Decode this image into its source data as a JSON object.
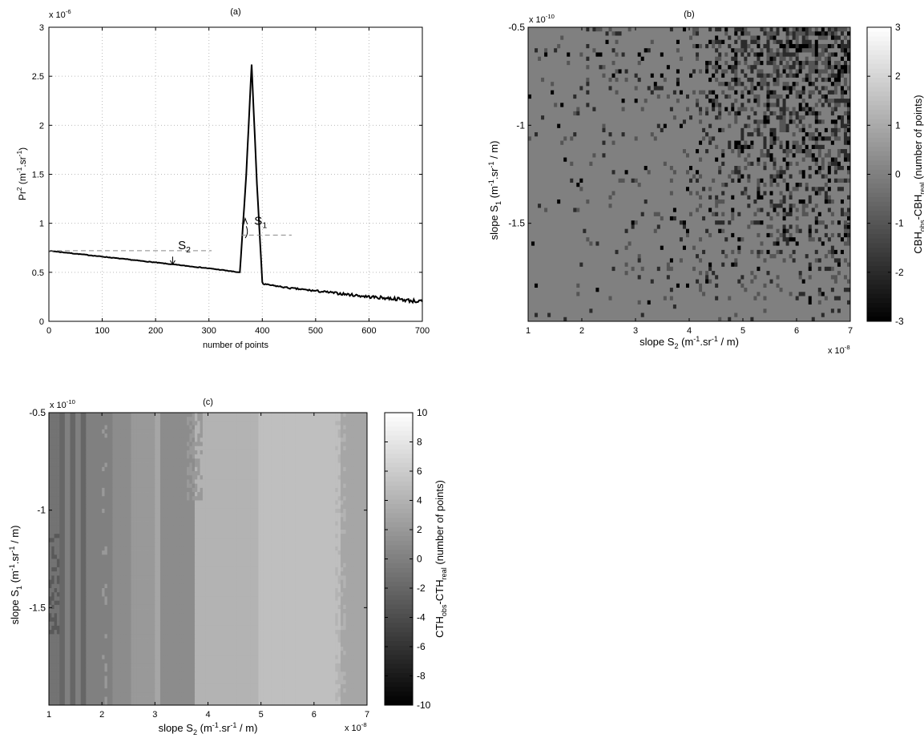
{
  "chart_data": [
    {
      "panel": "(a)",
      "type": "line",
      "title": "(a)",
      "xlabel": "number of points",
      "ylabel_main": "Pr",
      "ylabel_sup": "2",
      "ylabel_unit_1": " (m",
      "ylabel_unit_sup1": "-1",
      "ylabel_unit_2": ".sr",
      "ylabel_unit_sup2": "-1",
      "ylabel_unit_3": ")",
      "y_exponent": "x 10",
      "y_exponent_sup": "-6",
      "xlim": [
        0,
        700
      ],
      "ylim": [
        0,
        3
      ],
      "xticks": [
        "0",
        "100",
        "200",
        "300",
        "400",
        "500",
        "600",
        "700"
      ],
      "yticks": [
        "0",
        "0.5",
        "1",
        "1.5",
        "2",
        "2.5",
        "3"
      ],
      "grid": true,
      "series": [
        {
          "x": [
            0,
            50,
            100,
            150,
            200,
            250,
            300,
            330,
            355,
            358,
            370,
            380,
            390,
            400,
            402,
            450,
            500,
            550,
            600,
            650,
            680,
            700
          ],
          "y": [
            0.72,
            0.69,
            0.66,
            0.63,
            0.6,
            0.57,
            0.54,
            0.52,
            0.5,
            0.5,
            1.5,
            2.62,
            1.4,
            0.4,
            0.38,
            0.34,
            0.31,
            0.28,
            0.25,
            0.23,
            0.21,
            0.2
          ]
        }
      ],
      "annotations": [
        {
          "label": "S",
          "sub": "2"
        },
        {
          "label": "S",
          "sub": "1"
        }
      ]
    },
    {
      "panel": "(b)",
      "type": "heatmap",
      "title": "(b)",
      "xlabel_main": "slope S",
      "xlabel_sub": "2",
      "xlabel_unit_1": " (m",
      "xlabel_unit_sup1": "-1",
      "xlabel_unit_2": ".sr",
      "xlabel_unit_sup2": "-1",
      "xlabel_unit_3": " / m)",
      "ylabel_main": "slope S",
      "ylabel_sub": "1",
      "ylabel_unit_1": " (m",
      "ylabel_unit_sup1": "-1",
      "ylabel_unit_2": ".sr",
      "ylabel_unit_sup2": "-1",
      "ylabel_unit_3": " / m)",
      "x_exponent": "x 10",
      "x_exponent_sup": "-8",
      "y_exponent": "x 10",
      "y_exponent_sup": "-10",
      "xlim": [
        1,
        7
      ],
      "ylim": [
        -2.0,
        -0.5
      ],
      "xticks": [
        "1",
        "2",
        "3",
        "4",
        "5",
        "6",
        "7"
      ],
      "yticks": [
        "-0.5",
        "-1",
        "-1.5"
      ],
      "colorbar_label_1": "CBH",
      "colorbar_label_sub1": "obs",
      "colorbar_label_2": "-CBH",
      "colorbar_label_sub2": "real",
      "colorbar_label_3": " (number of points)",
      "clim": [
        -3,
        3
      ],
      "colorbar_ticks": [
        "3",
        "2",
        "1",
        "0",
        "-1",
        "-2",
        "-3"
      ],
      "colormap": "gray",
      "description_values": "mostly 0; scattered negative values increasing with S2 and with S1 closer to -0.5"
    },
    {
      "panel": "(c)",
      "type": "heatmap",
      "title": "(c)",
      "xlabel_main": "slope S",
      "xlabel_sub": "2",
      "xlabel_unit_1": " (m",
      "xlabel_unit_sup1": "-1",
      "xlabel_unit_2": ".sr",
      "xlabel_unit_sup2": "-1",
      "xlabel_unit_3": " / m)",
      "ylabel_main": "slope S",
      "ylabel_sub": "1",
      "ylabel_unit_1": " (m",
      "ylabel_unit_sup1": "-1",
      "ylabel_unit_2": ".sr",
      "ylabel_unit_sup2": "-1",
      "ylabel_unit_3": " / m)",
      "x_exponent": "x 10",
      "x_exponent_sup": "-8",
      "y_exponent": "x 10",
      "y_exponent_sup": "-10",
      "xlim": [
        1,
        7
      ],
      "ylim": [
        -2.0,
        -0.5
      ],
      "xticks": [
        "1",
        "2",
        "3",
        "4",
        "5",
        "6",
        "7"
      ],
      "yticks": [
        "-0.5",
        "-1",
        "-1.5"
      ],
      "colorbar_label_1": "CTH",
      "colorbar_label_sub1": "obs",
      "colorbar_label_2": "-CTH",
      "colorbar_label_sub2": "real",
      "colorbar_label_3": " (number of points)",
      "clim": [
        -10,
        10
      ],
      "colorbar_ticks": [
        "10",
        "8",
        "6",
        "4",
        "2",
        "0",
        "-2",
        "-4",
        "-6",
        "-8",
        "-10"
      ],
      "colormap": "gray",
      "column_bands": [
        {
          "x_from": 1.0,
          "x_to": 1.2,
          "value": -1
        },
        {
          "x_from": 1.2,
          "x_to": 1.3,
          "value": -2
        },
        {
          "x_from": 1.3,
          "x_to": 1.4,
          "value": 0
        },
        {
          "x_from": 1.4,
          "x_to": 1.5,
          "value": -2
        },
        {
          "x_from": 1.5,
          "x_to": 1.6,
          "value": 0
        },
        {
          "x_from": 1.6,
          "x_to": 1.7,
          "value": -2
        },
        {
          "x_from": 1.7,
          "x_to": 2.2,
          "value": 0
        },
        {
          "x_from": 2.2,
          "x_to": 2.55,
          "value": 1
        },
        {
          "x_from": 2.55,
          "x_to": 3.0,
          "value": 2
        },
        {
          "x_from": 3.0,
          "x_to": 3.1,
          "value": 3
        },
        {
          "x_from": 3.1,
          "x_to": 3.75,
          "value": 1
        },
        {
          "x_from": 3.75,
          "x_to": 4.95,
          "value": 4
        },
        {
          "x_from": 4.95,
          "x_to": 6.5,
          "value": 5
        },
        {
          "x_from": 6.5,
          "x_to": 7.0,
          "value": 3
        }
      ]
    }
  ]
}
